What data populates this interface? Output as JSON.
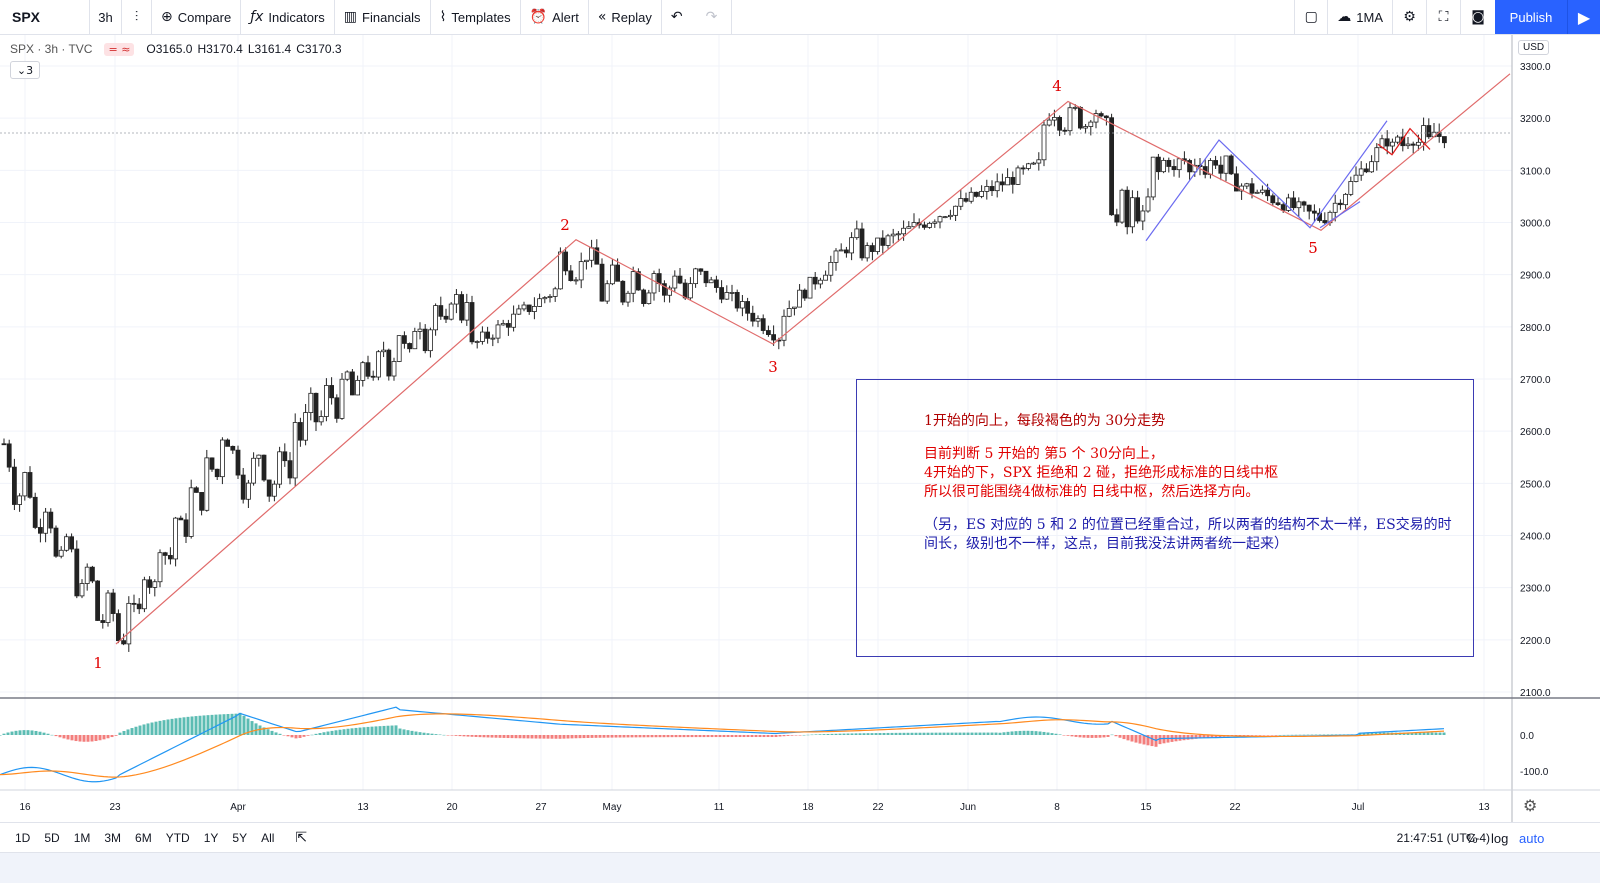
{
  "toolbar": {
    "symbol": "SPX",
    "interval": "3h",
    "compare": "Compare",
    "indicators": "Indicators",
    "financials": "Financials",
    "templates": "Templates",
    "alert": "Alert",
    "replay": "Replay",
    "ma_label": "1MA",
    "publish": "Publish"
  },
  "legend": {
    "title": "SPX · 3h · TVC",
    "open": "O3165.0",
    "high": "H3170.4",
    "low": "L3161.4",
    "close": "C3170.3",
    "collapse_count": "3"
  },
  "currency": "USD",
  "price_axis": [
    "3300.0",
    "3200.0",
    "3100.0",
    "3000.0",
    "2900.0",
    "2800.0",
    "2700.0",
    "2600.0",
    "2500.0",
    "2400.0",
    "2300.0",
    "2200.0",
    "2100.0"
  ],
  "indicator_axis": [
    "0.0",
    "-100.0"
  ],
  "time_axis": [
    "16",
    "23",
    "Apr",
    "13",
    "20",
    "27",
    "May",
    "11",
    "18",
    "22",
    "Jun",
    "8",
    "15",
    "22",
    "Jul",
    "13"
  ],
  "wave_labels": [
    "1",
    "2",
    "3",
    "4",
    "5"
  ],
  "annotation": {
    "line1": "1开始的向上，每段褐色的为 30分走势",
    "line2": "目前判断 5 开始的 第5 个 30分向上，",
    "line3": "4开始的下，SPX 拒绝和 2 碰，拒绝形成标准的日线中枢",
    "line4": "所以很可能围绕4做标准的 日线中枢，然后选择方向。",
    "line5": "（另，ES 对应的 5 和 2 的位置已经重合过，所以两者的结构不太一样，ES交易的时间长，级别也不一样，这点，目前我没法讲两者统一起来）"
  },
  "bottom": {
    "ranges": [
      "1D",
      "5D",
      "1M",
      "3M",
      "6M",
      "YTD",
      "1Y",
      "5Y",
      "All"
    ],
    "time": "21:47:51 (UTC-4)",
    "percent": "%",
    "log": "log",
    "auto": "auto"
  },
  "colors": {
    "up": "#ffffff",
    "down": "#222222",
    "wave_line": "#e06b6b",
    "sub_wave_line": "#6b6bf0",
    "annotation_red": "#e00000",
    "annotation_blue": "#1c1caa",
    "macd_line": "#2196f3",
    "signal_line": "#ff8a1f",
    "hist_up": "#26a69a",
    "hist_down": "#ef5350",
    "accent": "#2962ff"
  }
}
